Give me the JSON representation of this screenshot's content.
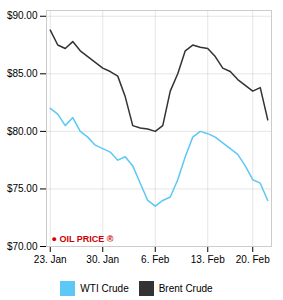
{
  "chart_data": {
    "type": "line",
    "x": [
      0,
      1,
      2,
      3,
      4,
      5,
      6,
      7,
      8,
      9,
      10,
      11,
      12,
      13,
      14,
      15,
      16,
      17,
      18,
      19,
      20,
      21,
      22,
      23,
      24,
      25,
      26,
      27,
      28,
      29
    ],
    "series": [
      {
        "name": "WTI Crude",
        "color": "#5BC8F5",
        "values": [
          82.0,
          81.5,
          80.5,
          81.2,
          80.0,
          79.5,
          78.8,
          78.5,
          78.2,
          77.5,
          77.8,
          77.0,
          75.5,
          74.0,
          73.5,
          74.0,
          74.3,
          75.8,
          77.8,
          79.5,
          80.0,
          79.8,
          79.5,
          79.0,
          78.5,
          78.0,
          77.0,
          75.8,
          75.5,
          74.0
        ]
      },
      {
        "name": "Brent Crude",
        "color": "#333333",
        "values": [
          88.8,
          87.5,
          87.2,
          87.8,
          87.0,
          86.5,
          86.0,
          85.5,
          85.2,
          84.8,
          83.0,
          80.5,
          80.3,
          80.2,
          80.0,
          80.5,
          83.5,
          85.0,
          87.0,
          87.5,
          87.3,
          87.2,
          86.5,
          85.5,
          85.2,
          84.5,
          84.0,
          83.5,
          83.8,
          81.0
        ]
      }
    ],
    "xlim": [
      -0.5,
      29.5
    ],
    "xticks": [
      {
        "value": 0,
        "label": "23. Jan"
      },
      {
        "value": 7,
        "label": "30. Jan"
      },
      {
        "value": 14,
        "label": "6. Feb"
      },
      {
        "value": 21,
        "label": "13. Feb"
      },
      {
        "value": 27,
        "label": "20. Feb"
      }
    ],
    "ylim": [
      70.0,
      90.5
    ],
    "yticks": [
      {
        "value": 70.0,
        "label": "$70.00"
      },
      {
        "value": 75.0,
        "label": "$75.00"
      },
      {
        "value": 80.0,
        "label": "$80.00"
      },
      {
        "value": 85.0,
        "label": "$85.00"
      },
      {
        "value": 90.0,
        "label": "$90.00"
      }
    ],
    "annotations": [
      "● OIL PRICE ®"
    ],
    "grid": true,
    "legend": "bottom"
  }
}
